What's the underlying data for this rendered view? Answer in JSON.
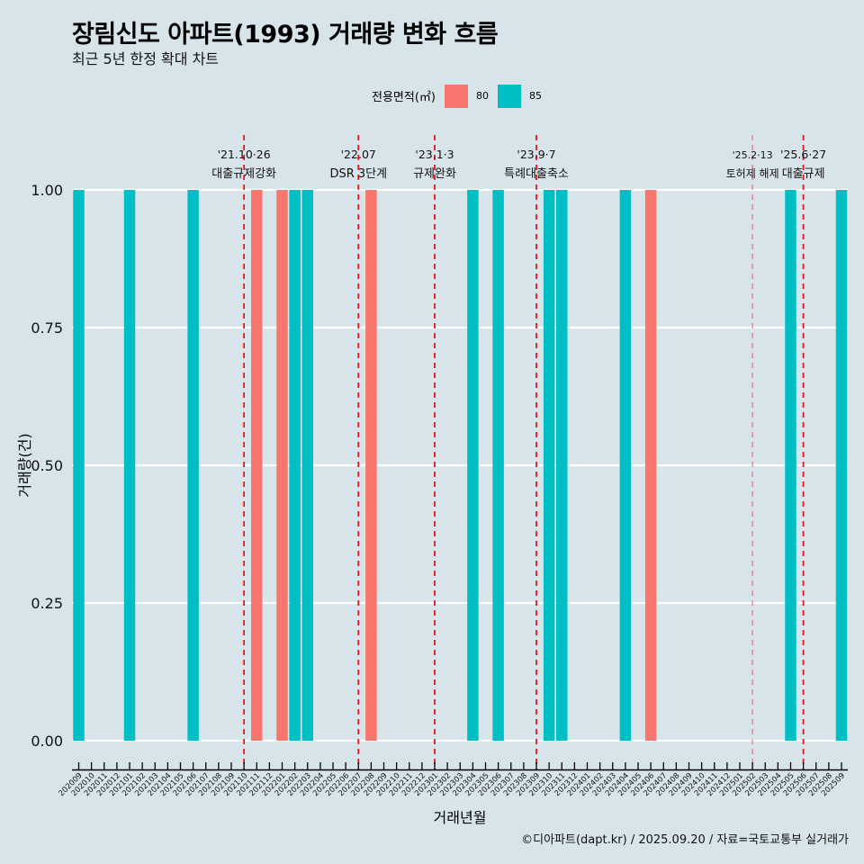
{
  "header": {
    "title": "장림신도 아파트(1993) 거래량 변화 흐름",
    "subtitle": "최근 5년 한정 확대 차트"
  },
  "legend": {
    "title": "전용면적(㎡)",
    "items": [
      {
        "label": "80",
        "color": "#F8766D"
      },
      {
        "label": "85",
        "color": "#00BFC4"
      }
    ]
  },
  "caption": "©디아파트(dapt.kr) / 2025.09.20 / 자료=국토교통부 실거래가",
  "chart_data": {
    "type": "bar",
    "title": "장림신도 아파트(1993) 거래량 변화 흐름",
    "subtitle": "최근 5년 한정 확대 차트",
    "xlabel": "거래년월",
    "ylabel": "거래량(건)",
    "ylim": [
      0,
      1
    ],
    "yticks": [
      "0.00",
      "0.25",
      "0.50",
      "0.75",
      "1.00"
    ],
    "ytick_values": [
      0,
      0.25,
      0.5,
      0.75,
      1.0
    ],
    "grid": true,
    "legend_position": "top",
    "categories": [
      "202009",
      "202010",
      "202011",
      "202012",
      "202101",
      "202102",
      "202103",
      "202104",
      "202105",
      "202106",
      "202107",
      "202108",
      "202109",
      "202110",
      "202111",
      "202112",
      "202201",
      "202202",
      "202203",
      "202204",
      "202205",
      "202206",
      "202207",
      "202208",
      "202209",
      "202210",
      "202211",
      "202212",
      "202301",
      "202302",
      "202303",
      "202304",
      "202305",
      "202306",
      "202307",
      "202308",
      "202309",
      "202310",
      "202311",
      "202312",
      "202401",
      "202402",
      "202403",
      "202404",
      "202405",
      "202406",
      "202407",
      "202408",
      "202409",
      "202410",
      "202411",
      "202412",
      "202501",
      "202502",
      "202503",
      "202504",
      "202505",
      "202506",
      "202507",
      "202508",
      "202509"
    ],
    "series": [
      {
        "name": "80",
        "color": "#F8766D",
        "points": [
          {
            "x": "202111",
            "y": 1
          },
          {
            "x": "202201",
            "y": 1
          },
          {
            "x": "202208",
            "y": 1
          },
          {
            "x": "202406",
            "y": 1
          }
        ]
      },
      {
        "name": "85",
        "color": "#00BFC4",
        "points": [
          {
            "x": "202009",
            "y": 1
          },
          {
            "x": "202101",
            "y": 1
          },
          {
            "x": "202106",
            "y": 1
          },
          {
            "x": "202202",
            "y": 1
          },
          {
            "x": "202203",
            "y": 1
          },
          {
            "x": "202304",
            "y": 1
          },
          {
            "x": "202306",
            "y": 1
          },
          {
            "x": "202310",
            "y": 1
          },
          {
            "x": "202311",
            "y": 1
          },
          {
            "x": "202404",
            "y": 1
          },
          {
            "x": "202505",
            "y": 1
          },
          {
            "x": "202509",
            "y": 1
          }
        ]
      }
    ],
    "annotations": [
      {
        "x": "202110",
        "date": "'21.10·26",
        "label": "대출규제강화",
        "style": "strong"
      },
      {
        "x": "202207",
        "date": "'22.07",
        "label": "DSR 3단계",
        "style": "strong"
      },
      {
        "x": "202301",
        "date": "'23.1·3",
        "label": "규제완화",
        "style": "strong"
      },
      {
        "x": "202309",
        "date": "'23.9·7",
        "label": "특례대출축소",
        "style": "strong"
      },
      {
        "x": "202502",
        "date": "'25.2·13",
        "label": "토허제 해제",
        "style": "light"
      },
      {
        "x": "202506",
        "date": "'25.6·27",
        "label": "대출규제",
        "style": "strong"
      }
    ]
  }
}
